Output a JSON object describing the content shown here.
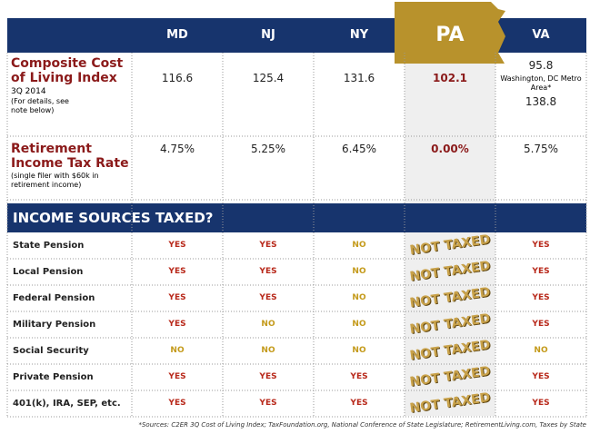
{
  "header": {
    "columns": [
      "MD",
      "NJ",
      "NY",
      "PA",
      "VA"
    ]
  },
  "cost_row": {
    "title": "Composite Cost of Living Index",
    "period": "3Q 2014",
    "note": "(For details, see note below)",
    "values": [
      116.6,
      125.4,
      131.6,
      102.1,
      95.8
    ],
    "va_extra_label": "Washington, DC Metro Area*",
    "va_extra_value": 138.8
  },
  "tax_row": {
    "title": "Retirement Income Tax Rate",
    "note": "(single filer with $60k in retirement income)",
    "values": [
      "4.75%",
      "5.25%",
      "6.45%",
      "0.00%",
      "5.75%"
    ]
  },
  "banner": "INCOME SOURCES TAXED?",
  "sources": [
    {
      "name": "State Pension",
      "values": [
        "YES",
        "YES",
        "NO",
        "NOT TAXED",
        "YES"
      ]
    },
    {
      "name": "Local Pension",
      "values": [
        "YES",
        "YES",
        "NO",
        "NOT TAXED",
        "YES"
      ]
    },
    {
      "name": "Federal Pension",
      "values": [
        "YES",
        "YES",
        "NO",
        "NOT TAXED",
        "YES"
      ]
    },
    {
      "name": "Military Pension",
      "values": [
        "YES",
        "NO",
        "NO",
        "NOT TAXED",
        "YES"
      ]
    },
    {
      "name": "Social Security",
      "values": [
        "NO",
        "NO",
        "NO",
        "NOT TAXED",
        "NO"
      ]
    },
    {
      "name": "Private Pension",
      "values": [
        "YES",
        "YES",
        "YES",
        "NOT TAXED",
        "YES"
      ]
    },
    {
      "name": "401(k), IRA, SEP, etc.",
      "values": [
        "YES",
        "YES",
        "YES",
        "NOT TAXED",
        "YES"
      ]
    }
  ],
  "footnote": "*Sources: C2ER 3Q Cost of Living Index; TaxFoundation.org, National Conference of State Legislature; RetirementLiving.com, Taxes by State"
}
